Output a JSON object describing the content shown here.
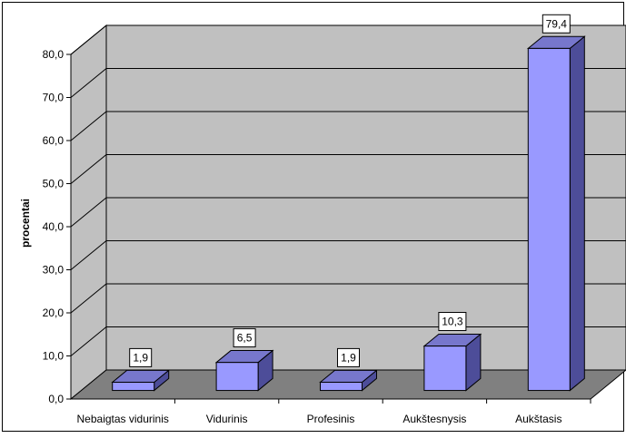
{
  "chart_data": {
    "type": "bar",
    "title": "",
    "xlabel": "",
    "ylabel": "procentai",
    "categories": [
      "Nebaigtas vidurinis",
      "Vidurinis",
      "Profesinis",
      "Aukštesnysis",
      "Aukštasis"
    ],
    "values": [
      1.9,
      6.5,
      1.9,
      10.3,
      79.4
    ],
    "data_labels": [
      "1,9",
      "6,5",
      "1,9",
      "10,3",
      "79,4"
    ],
    "yticks": [
      "0,0",
      "10,0",
      "20,0",
      "30,0",
      "40,0",
      "50,0",
      "60,0",
      "70,0",
      "80,0"
    ],
    "ylim": [
      0,
      80
    ],
    "grid": true,
    "legend": "none",
    "colors": {
      "bar_front": "#9999ff",
      "bar_side": "#4d4d99",
      "bar_top": "#7777cc",
      "back_wall": "#c0c0c0",
      "side_wall": "#c0c0c0",
      "floor": "#808080",
      "gridline": "#000000"
    }
  }
}
